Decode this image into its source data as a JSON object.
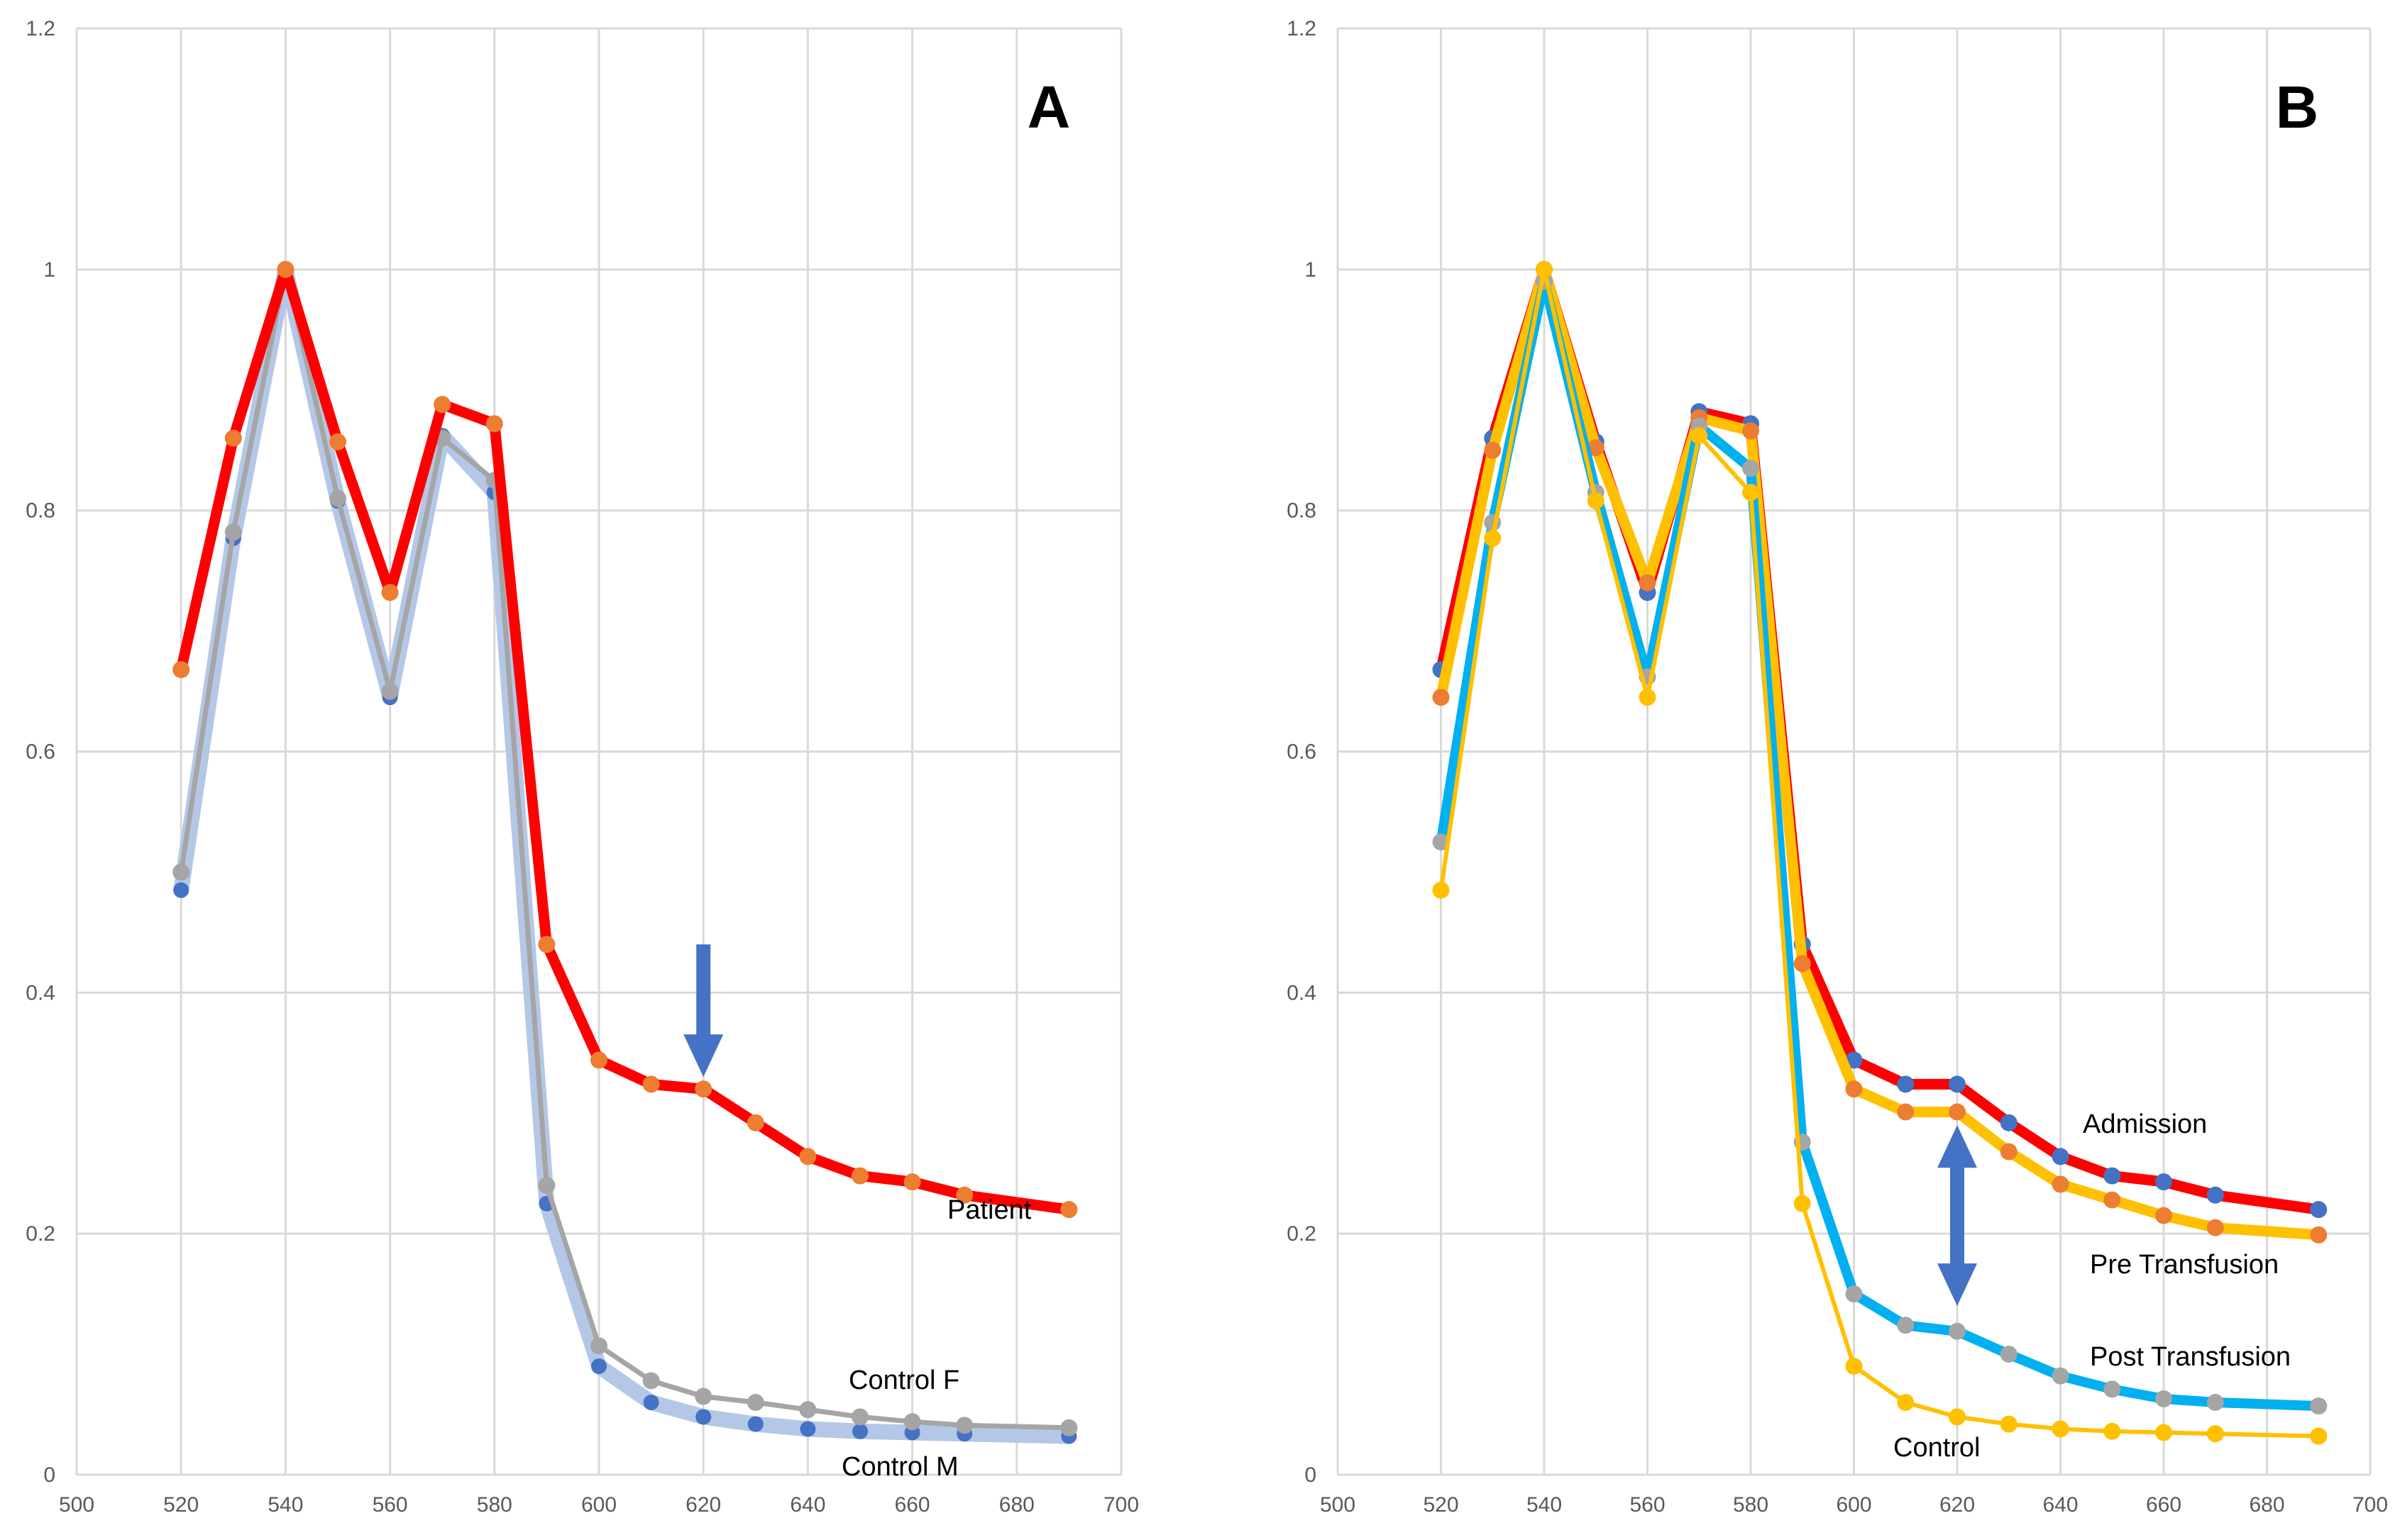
{
  "chart_data": [
    {
      "type": "line",
      "panel_label": "A",
      "xlim": [
        500,
        700
      ],
      "ylim": [
        0,
        1.2
      ],
      "x_ticks": [
        500,
        520,
        540,
        560,
        580,
        600,
        620,
        640,
        660,
        680,
        700
      ],
      "y_ticks": [
        0,
        0.2,
        0.4,
        0.6,
        0.8,
        1,
        1.2
      ],
      "x_tick_labels": [
        "500",
        "520",
        "540",
        "560",
        "580",
        "600",
        "620",
        "640",
        "660",
        "680",
        "700"
      ],
      "y_tick_labels": [
        "0",
        "0.2",
        "0.4",
        "0.6",
        "0.8",
        "1",
        "1.2"
      ],
      "grid": true,
      "x": [
        520,
        530,
        540,
        550,
        560,
        570,
        580,
        590,
        600,
        610,
        620,
        630,
        640,
        650,
        660,
        670,
        690
      ],
      "series": [
        {
          "name": "Control M",
          "line_color": "#b4c7e7",
          "marker_color": "#4472c4",
          "values": [
            0.485,
            0.777,
            1.0,
            0.808,
            0.645,
            0.862,
            0.815,
            0.225,
            0.09,
            0.06,
            0.048,
            0.042,
            0.038,
            0.036,
            0.035,
            0.034,
            0.032
          ]
        },
        {
          "name": "Control F",
          "line_color": "#a5a5a5",
          "marker_color": "#a5a5a5",
          "values": [
            0.5,
            0.782,
            1.0,
            0.81,
            0.65,
            0.86,
            0.825,
            0.24,
            0.107,
            0.078,
            0.065,
            0.06,
            0.054,
            0.048,
            0.044,
            0.041,
            0.039
          ]
        },
        {
          "name": "Patient",
          "line_color": "#ff0000",
          "marker_color": "#ed7d31",
          "values": [
            0.668,
            0.86,
            1.0,
            0.857,
            0.732,
            0.888,
            0.872,
            0.44,
            0.344,
            0.324,
            0.32,
            0.292,
            0.264,
            0.248,
            0.243,
            0.232,
            0.22
          ]
        }
      ],
      "labels": [
        "Patient",
        "Control F",
        "Control M"
      ],
      "annotations": [
        {
          "type": "arrow-down",
          "x": 620,
          "y_from": 0.44,
          "y_to": 0.33,
          "color": "#4472c4"
        }
      ]
    },
    {
      "type": "line",
      "panel_label": "B",
      "xlim": [
        500,
        700
      ],
      "ylim": [
        0,
        1.2
      ],
      "x_ticks": [
        500,
        520,
        540,
        560,
        580,
        600,
        620,
        640,
        660,
        680,
        700
      ],
      "y_ticks": [
        0,
        0.2,
        0.4,
        0.6,
        0.8,
        1,
        1.2
      ],
      "x_tick_labels": [
        "500",
        "520",
        "540",
        "560",
        "580",
        "600",
        "620",
        "640",
        "660",
        "680",
        "700"
      ],
      "y_tick_labels": [
        "0",
        "0.2",
        "0.4",
        "0.6",
        "0.8",
        "1",
        "1.2"
      ],
      "grid": true,
      "x": [
        520,
        530,
        540,
        550,
        560,
        570,
        580,
        590,
        600,
        610,
        620,
        630,
        640,
        650,
        660,
        670,
        690
      ],
      "series": [
        {
          "name": "Admission",
          "line_color": "#ff0000",
          "marker_color": "#4472c4",
          "values": [
            0.668,
            0.86,
            1.0,
            0.857,
            0.732,
            0.882,
            0.872,
            0.44,
            0.344,
            0.324,
            0.324,
            0.292,
            0.264,
            0.248,
            0.243,
            0.232,
            0.22
          ]
        },
        {
          "name": "Pre Transfusion",
          "line_color": "#ffc000",
          "marker_color": "#ed7d31",
          "values": [
            0.645,
            0.85,
            1.0,
            0.852,
            0.74,
            0.877,
            0.866,
            0.424,
            0.32,
            0.301,
            0.301,
            0.268,
            0.241,
            0.228,
            0.215,
            0.205,
            0.199
          ]
        },
        {
          "name": "Post Transfusion",
          "line_color": "#00b0f0",
          "marker_color": "#a5a5a5",
          "values": [
            0.525,
            0.79,
            0.99,
            0.815,
            0.662,
            0.87,
            0.835,
            0.276,
            0.15,
            0.124,
            0.119,
            0.1,
            0.082,
            0.071,
            0.063,
            0.06,
            0.057
          ]
        },
        {
          "name": "Control",
          "line_color": "#ffc000",
          "marker_color": "#ffc000",
          "values": [
            0.485,
            0.777,
            1.0,
            0.808,
            0.645,
            0.862,
            0.815,
            0.225,
            0.09,
            0.06,
            0.048,
            0.042,
            0.038,
            0.036,
            0.035,
            0.034,
            0.032
          ]
        }
      ],
      "labels": [
        "Admission",
        "Pre Transfusion",
        "Post Transfusion",
        "Control"
      ],
      "annotations": [
        {
          "type": "arrow-double",
          "x": 620,
          "y_from": 0.29,
          "y_to": 0.14,
          "color": "#4472c4"
        }
      ]
    }
  ]
}
